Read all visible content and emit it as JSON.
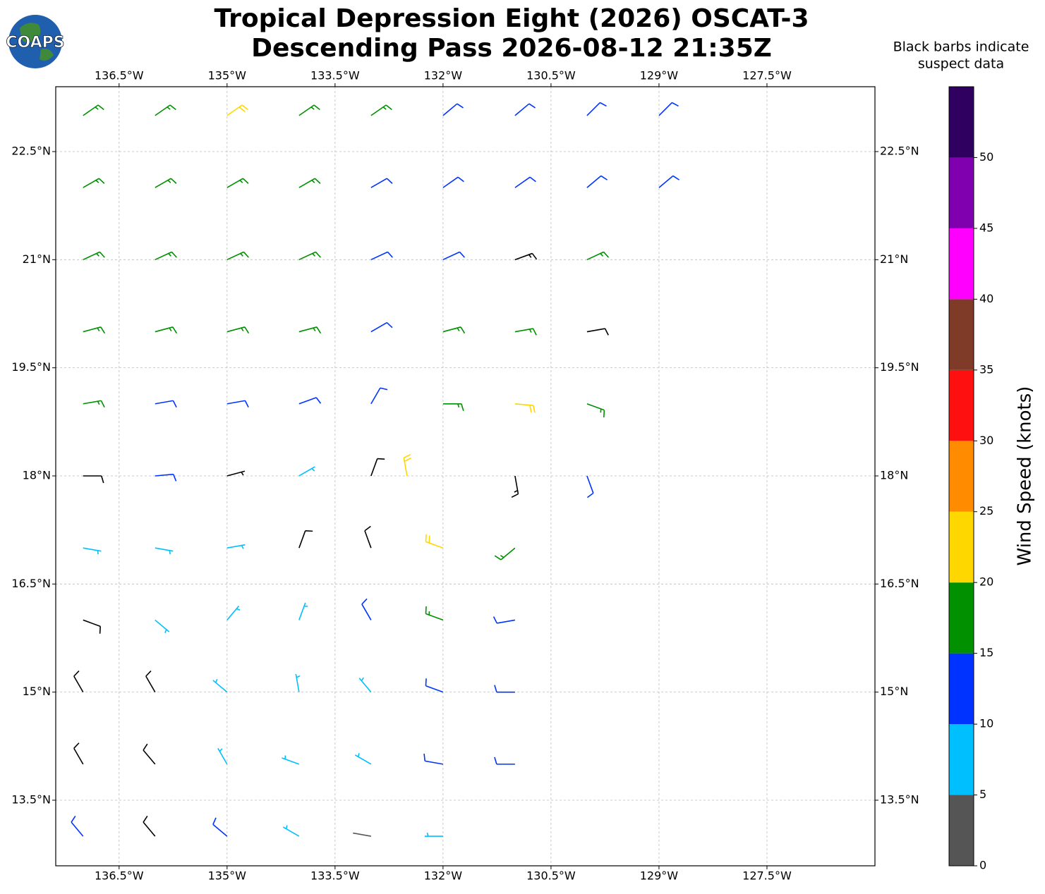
{
  "chart_data": {
    "type": "wind-barbs",
    "logo": "COAPS",
    "title": "Tropical Depression Eight (2026) OSCAT-3",
    "subtitle": "Descending Pass 2026-08-12 21:35Z",
    "note": [
      "Black barbs indicate",
      "suspect data"
    ],
    "xlim": [
      -137.38,
      -126.0
    ],
    "ylim": [
      12.59,
      23.4
    ],
    "xticks": [
      {
        "value": -136.5,
        "label": "136.5°W"
      },
      {
        "value": -135,
        "label": "135°W"
      },
      {
        "value": -133.5,
        "label": "133.5°W"
      },
      {
        "value": -132,
        "label": "132°W"
      },
      {
        "value": -130.5,
        "label": "130.5°W"
      },
      {
        "value": -129,
        "label": "129°W"
      },
      {
        "value": -127.5,
        "label": "127.5°W"
      }
    ],
    "yticks": [
      {
        "value": 13.5,
        "label": "13.5°N"
      },
      {
        "value": 15,
        "label": "15°N"
      },
      {
        "value": 16.5,
        "label": "16.5°N"
      },
      {
        "value": 18,
        "label": "18°N"
      },
      {
        "value": 19.5,
        "label": "19.5°N"
      },
      {
        "value": 21,
        "label": "21°N"
      },
      {
        "value": 22.5,
        "label": "22.5°N"
      }
    ],
    "grid": true,
    "suspect_color": "#000000",
    "colorbar": {
      "label": "Wind Speed (knots)",
      "bounds": [
        0,
        5,
        10,
        15,
        20,
        25,
        30,
        35,
        40,
        45,
        50,
        55
      ],
      "colors": [
        "#555555",
        "#00bfff",
        "#0033ff",
        "#009000",
        "#ffd700",
        "#ff8c00",
        "#ff1010",
        "#7f3a28",
        "#ff00ff",
        "#8000b0",
        "#300060"
      ],
      "ticks": [
        0,
        5,
        10,
        15,
        20,
        25,
        30,
        35,
        40,
        45,
        50
      ]
    },
    "barbs": [
      {
        "lon": -137,
        "lat": 23,
        "speed": 17,
        "dir": 55,
        "suspect": false
      },
      {
        "lon": -136,
        "lat": 23,
        "speed": 18,
        "dir": 55,
        "suspect": false
      },
      {
        "lon": -135,
        "lat": 23,
        "speed": 22,
        "dir": 55,
        "suspect": false
      },
      {
        "lon": -134,
        "lat": 23,
        "speed": 17,
        "dir": 55,
        "suspect": false
      },
      {
        "lon": -133,
        "lat": 23,
        "speed": 16,
        "dir": 55,
        "suspect": false
      },
      {
        "lon": -132,
        "lat": 23,
        "speed": 13,
        "dir": 50,
        "suspect": false
      },
      {
        "lon": -131,
        "lat": 23,
        "speed": 12,
        "dir": 50,
        "suspect": false
      },
      {
        "lon": -130,
        "lat": 23,
        "speed": 11,
        "dir": 45,
        "suspect": false
      },
      {
        "lon": -129,
        "lat": 23,
        "speed": 11,
        "dir": 45,
        "suspect": false
      },
      {
        "lon": -137,
        "lat": 22,
        "speed": 18,
        "dir": 60,
        "suspect": false
      },
      {
        "lon": -136,
        "lat": 22,
        "speed": 17,
        "dir": 60,
        "suspect": false
      },
      {
        "lon": -135,
        "lat": 22,
        "speed": 17,
        "dir": 60,
        "suspect": false
      },
      {
        "lon": -134,
        "lat": 22,
        "speed": 16,
        "dir": 60,
        "suspect": false
      },
      {
        "lon": -133,
        "lat": 22,
        "speed": 13,
        "dir": 60,
        "suspect": false
      },
      {
        "lon": -132,
        "lat": 22,
        "speed": 12,
        "dir": 55,
        "suspect": false
      },
      {
        "lon": -131,
        "lat": 22,
        "speed": 11,
        "dir": 55,
        "suspect": false
      },
      {
        "lon": -130,
        "lat": 22,
        "speed": 11,
        "dir": 50,
        "suspect": false
      },
      {
        "lon": -129,
        "lat": 22,
        "speed": 10,
        "dir": 50,
        "suspect": false
      },
      {
        "lon": -137,
        "lat": 21,
        "speed": 17,
        "dir": 65,
        "suspect": false
      },
      {
        "lon": -136,
        "lat": 21,
        "speed": 17,
        "dir": 65,
        "suspect": false
      },
      {
        "lon": -135,
        "lat": 21,
        "speed": 16,
        "dir": 65,
        "suspect": false
      },
      {
        "lon": -134,
        "lat": 21,
        "speed": 16,
        "dir": 65,
        "suspect": false
      },
      {
        "lon": -133,
        "lat": 21,
        "speed": 12,
        "dir": 65,
        "suspect": false
      },
      {
        "lon": -132,
        "lat": 21,
        "speed": 12,
        "dir": 65,
        "suspect": false
      },
      {
        "lon": -131,
        "lat": 21,
        "speed": 15,
        "dir": 70,
        "suspect": true
      },
      {
        "lon": -130,
        "lat": 21,
        "speed": 16,
        "dir": 65,
        "suspect": false
      },
      {
        "lon": -137,
        "lat": 20,
        "speed": 16,
        "dir": 75,
        "suspect": false
      },
      {
        "lon": -136,
        "lat": 20,
        "speed": 17,
        "dir": 75,
        "suspect": false
      },
      {
        "lon": -135,
        "lat": 20,
        "speed": 16,
        "dir": 75,
        "suspect": false
      },
      {
        "lon": -134,
        "lat": 20,
        "speed": 17,
        "dir": 75,
        "suspect": false
      },
      {
        "lon": -133,
        "lat": 20,
        "speed": 11,
        "dir": 60,
        "suspect": false
      },
      {
        "lon": -132,
        "lat": 20,
        "speed": 17,
        "dir": 75,
        "suspect": false
      },
      {
        "lon": -131,
        "lat": 20,
        "speed": 17,
        "dir": 80,
        "suspect": false
      },
      {
        "lon": -130,
        "lat": 20,
        "speed": 13,
        "dir": 80,
        "suspect": true
      },
      {
        "lon": -137,
        "lat": 19,
        "speed": 15,
        "dir": 80,
        "suspect": false
      },
      {
        "lon": -136,
        "lat": 19,
        "speed": 13,
        "dir": 80,
        "suspect": false
      },
      {
        "lon": -135,
        "lat": 19,
        "speed": 12,
        "dir": 80,
        "suspect": false
      },
      {
        "lon": -134,
        "lat": 19,
        "speed": 12,
        "dir": 70,
        "suspect": false
      },
      {
        "lon": -133,
        "lat": 19,
        "speed": 14,
        "dir": 30,
        "suspect": false
      },
      {
        "lon": -132,
        "lat": 19,
        "speed": 17,
        "dir": 90,
        "suspect": false
      },
      {
        "lon": -131,
        "lat": 19,
        "speed": 22,
        "dir": 95,
        "suspect": false
      },
      {
        "lon": -130,
        "lat": 19,
        "speed": 17,
        "dir": 110,
        "suspect": false
      },
      {
        "lon": -137,
        "lat": 18,
        "speed": 11,
        "dir": 90,
        "suspect": true
      },
      {
        "lon": -136,
        "lat": 18,
        "speed": 12,
        "dir": 85,
        "suspect": false
      },
      {
        "lon": -135,
        "lat": 18,
        "speed": 8,
        "dir": 75,
        "suspect": true
      },
      {
        "lon": -134,
        "lat": 18,
        "speed": 9,
        "dir": 60,
        "suspect": false
      },
      {
        "lon": -133,
        "lat": 18,
        "speed": 11,
        "dir": 20,
        "suspect": true
      },
      {
        "lon": -132.5,
        "lat": 18,
        "speed": 22,
        "dir": 350,
        "suspect": false
      },
      {
        "lon": -131,
        "lat": 18,
        "speed": 16,
        "dir": 170,
        "suspect": true
      },
      {
        "lon": -130,
        "lat": 18,
        "speed": 14,
        "dir": 160,
        "suspect": false
      },
      {
        "lon": -137,
        "lat": 17,
        "speed": 8,
        "dir": 100,
        "suspect": false
      },
      {
        "lon": -136,
        "lat": 17,
        "speed": 8,
        "dir": 100,
        "suspect": false
      },
      {
        "lon": -135,
        "lat": 17,
        "speed": 8,
        "dir": 80,
        "suspect": false
      },
      {
        "lon": -134,
        "lat": 17,
        "speed": 10,
        "dir": 20,
        "suspect": true
      },
      {
        "lon": -133,
        "lat": 17,
        "speed": 12,
        "dir": 340,
        "suspect": true
      },
      {
        "lon": -132,
        "lat": 17,
        "speed": 22,
        "dir": 290,
        "suspect": false
      },
      {
        "lon": -131,
        "lat": 17,
        "speed": 17,
        "dir": 230,
        "suspect": false
      },
      {
        "lon": -137,
        "lat": 16,
        "speed": 10,
        "dir": 110,
        "suspect": true
      },
      {
        "lon": -136,
        "lat": 16,
        "speed": 7,
        "dir": 130,
        "suspect": false
      },
      {
        "lon": -135,
        "lat": 16,
        "speed": 6,
        "dir": 40,
        "suspect": false
      },
      {
        "lon": -134,
        "lat": 16,
        "speed": 8,
        "dir": 20,
        "suspect": false
      },
      {
        "lon": -133,
        "lat": 16,
        "speed": 10,
        "dir": 330,
        "suspect": false
      },
      {
        "lon": -132,
        "lat": 16,
        "speed": 16,
        "dir": 290,
        "suspect": false
      },
      {
        "lon": -131,
        "lat": 16,
        "speed": 12,
        "dir": 260,
        "suspect": false
      },
      {
        "lon": -137,
        "lat": 15,
        "speed": 12,
        "dir": 330,
        "suspect": true
      },
      {
        "lon": -136,
        "lat": 15,
        "speed": 10,
        "dir": 330,
        "suspect": true
      },
      {
        "lon": -135,
        "lat": 15,
        "speed": 7,
        "dir": 310,
        "suspect": false
      },
      {
        "lon": -134,
        "lat": 15,
        "speed": 7,
        "dir": 350,
        "suspect": false
      },
      {
        "lon": -133,
        "lat": 15,
        "speed": 9,
        "dir": 320,
        "suspect": false
      },
      {
        "lon": -132,
        "lat": 15,
        "speed": 12,
        "dir": 290,
        "suspect": false
      },
      {
        "lon": -131,
        "lat": 15,
        "speed": 13,
        "dir": 270,
        "suspect": false
      },
      {
        "lon": -137,
        "lat": 14,
        "speed": 13,
        "dir": 330,
        "suspect": true
      },
      {
        "lon": -136,
        "lat": 14,
        "speed": 13,
        "dir": 320,
        "suspect": true
      },
      {
        "lon": -135,
        "lat": 14,
        "speed": 8,
        "dir": 330,
        "suspect": false
      },
      {
        "lon": -134,
        "lat": 14,
        "speed": 7,
        "dir": 290,
        "suspect": false
      },
      {
        "lon": -133,
        "lat": 14,
        "speed": 8,
        "dir": 300,
        "suspect": false
      },
      {
        "lon": -132,
        "lat": 14,
        "speed": 10,
        "dir": 280,
        "suspect": false
      },
      {
        "lon": -131,
        "lat": 14,
        "speed": 13,
        "dir": 270,
        "suspect": false
      },
      {
        "lon": -137,
        "lat": 13,
        "speed": 13,
        "dir": 320,
        "suspect": false
      },
      {
        "lon": -136,
        "lat": 13,
        "speed": 12,
        "dir": 320,
        "suspect": true
      },
      {
        "lon": -135,
        "lat": 13,
        "speed": 11,
        "dir": 310,
        "suspect": false
      },
      {
        "lon": -134,
        "lat": 13,
        "speed": 7,
        "dir": 300,
        "suspect": false
      },
      {
        "lon": -133,
        "lat": 13,
        "speed": 4,
        "dir": 280,
        "suspect": false
      },
      {
        "lon": -132,
        "lat": 13,
        "speed": 5,
        "dir": 270,
        "suspect": false
      }
    ]
  }
}
